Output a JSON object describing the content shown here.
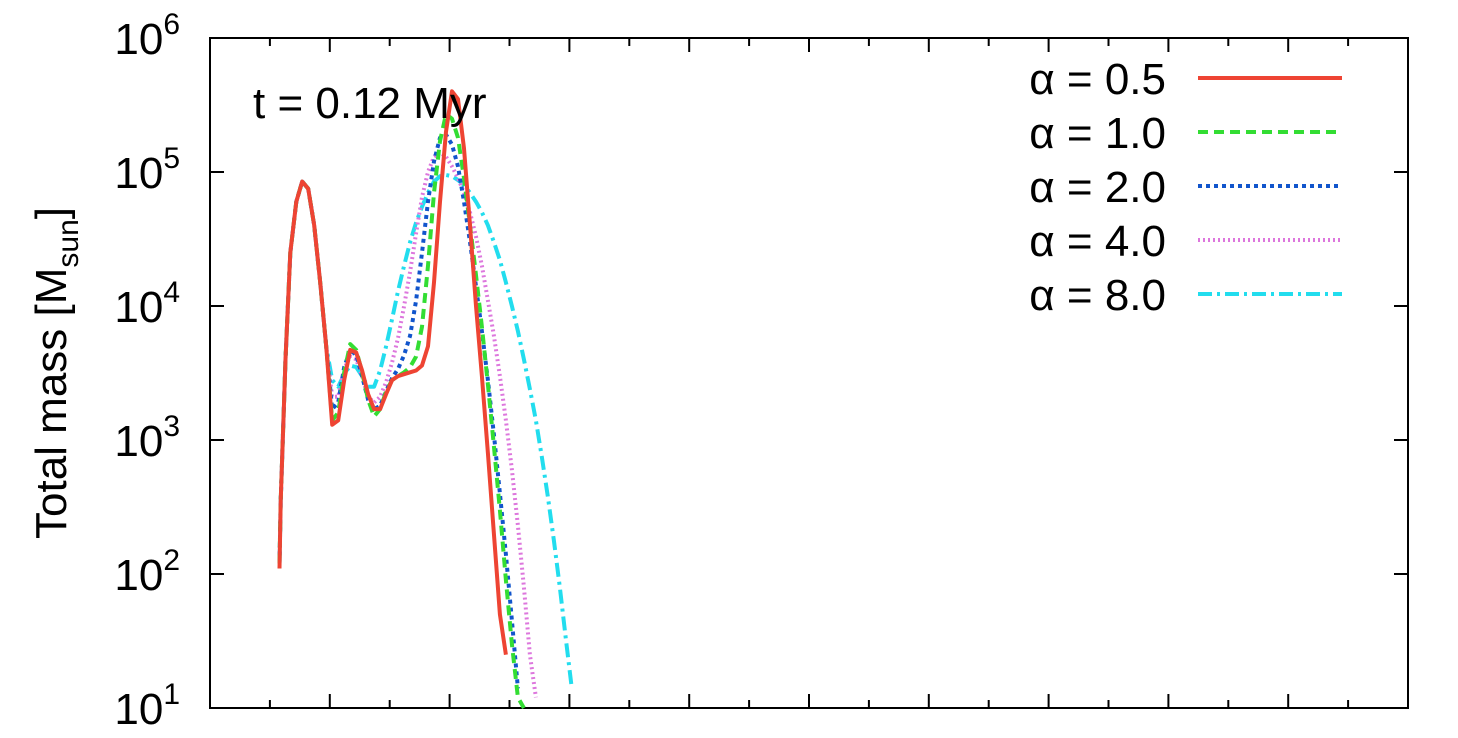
{
  "chart_data": {
    "type": "line",
    "title": "",
    "annotation": "t = 0.12 Myr",
    "ylabel": {
      "main": "Total mass [M",
      "sub": "sun",
      "close": "]"
    },
    "xlabel": "",
    "yscale": "log",
    "ylim": [
      10,
      1000000
    ],
    "y_ticks": [
      {
        "base": "10",
        "exp": "1",
        "value": 10
      },
      {
        "base": "10",
        "exp": "2",
        "value": 100
      },
      {
        "base": "10",
        "exp": "3",
        "value": 1000
      },
      {
        "base": "10",
        "exp": "4",
        "value": 10000
      },
      {
        "base": "10",
        "exp": "5",
        "value": 100000
      },
      {
        "base": "10",
        "exp": "6",
        "value": 1000000
      }
    ],
    "x_tick_labels": "none",
    "legend_position": "top-right",
    "series": [
      {
        "name": "α = 0.5",
        "color": "#ee4433",
        "dash": "",
        "width": 4,
        "x": [
          0.58,
          0.59,
          0.63,
          0.67,
          0.72,
          0.77,
          0.82,
          0.87,
          0.92,
          0.97,
          1.02,
          1.07,
          1.12,
          1.17,
          1.22,
          1.27,
          1.32,
          1.37,
          1.42,
          1.47,
          1.52,
          1.57,
          1.62,
          1.67,
          1.72,
          1.77,
          1.82,
          1.87,
          1.92,
          1.97,
          2.02,
          2.07,
          2.12,
          2.17,
          2.22,
          2.27,
          2.32,
          2.37,
          2.42,
          2.47,
          2.52,
          2.57,
          2.62,
          2.67,
          2.72,
          2.77,
          2.82,
          2.87,
          2.92,
          2.97,
          3.0,
          3.05,
          3.1,
          3.15,
          3.2,
          3.25,
          3.3,
          3.35,
          3.38
        ],
        "y": [
          110,
          350,
          4000,
          25000,
          60000,
          85000,
          75000,
          40000,
          15000,
          5000,
          1300,
          1400,
          2800,
          4700,
          4500,
          3300,
          2200,
          1700,
          1700,
          2200,
          2800,
          3000,
          3100,
          3200,
          3300,
          3600,
          5000,
          15000,
          60000,
          200000,
          400000,
          350000,
          150000,
          40000,
          10000,
          3000,
          800,
          200,
          50,
          25,
          null,
          null,
          null,
          null,
          null,
          null,
          null,
          null,
          null,
          null,
          null,
          null,
          null,
          null,
          null,
          null,
          null,
          null,
          null
        ]
      },
      {
        "name": "α = 1.0",
        "color": "#33dd33",
        "dash": "10,6",
        "width": 4,
        "x": [
          0.58,
          0.59,
          0.63,
          0.67,
          0.72,
          0.77,
          0.82,
          0.87,
          0.92,
          0.97,
          1.02,
          1.07,
          1.12,
          1.17,
          1.22,
          1.27,
          1.32,
          1.37,
          1.42,
          1.47,
          1.52,
          1.57,
          1.62,
          1.67,
          1.72,
          1.77,
          1.82,
          1.87,
          1.92,
          1.97,
          2.02,
          2.07,
          2.12,
          2.17,
          2.22,
          2.27,
          2.32,
          2.37,
          2.42,
          2.47,
          2.52,
          2.57,
          2.62,
          2.67,
          2.72
        ],
        "y": [
          120,
          350,
          4000,
          25000,
          60000,
          85000,
          75000,
          40000,
          15000,
          5000,
          1400,
          1600,
          3200,
          5200,
          4700,
          3200,
          2000,
          1500,
          1700,
          2300,
          2800,
          3000,
          3200,
          3500,
          4200,
          7000,
          20000,
          70000,
          170000,
          270000,
          250000,
          180000,
          90000,
          40000,
          17000,
          7000,
          2600,
          900,
          300,
          90,
          30,
          12,
          8,
          null,
          null
        ]
      },
      {
        "name": "α = 2.0",
        "color": "#1155cc",
        "dash": "4,4",
        "width": 4,
        "x": [
          0.58,
          0.59,
          0.63,
          0.67,
          0.72,
          0.77,
          0.82,
          0.87,
          0.92,
          0.97,
          1.02,
          1.07,
          1.12,
          1.17,
          1.22,
          1.27,
          1.32,
          1.37,
          1.42,
          1.47,
          1.52,
          1.57,
          1.62,
          1.67,
          1.72,
          1.77,
          1.82,
          1.87,
          1.92,
          1.97,
          2.02,
          2.07,
          2.12,
          2.17,
          2.22,
          2.27,
          2.32,
          2.37,
          2.42,
          2.47,
          2.52,
          2.57,
          2.62,
          2.67,
          2.72,
          2.77,
          2.82,
          2.87,
          2.92,
          2.97,
          3.0,
          3.05,
          3.1,
          3.15
        ],
        "y": [
          120,
          350,
          4000,
          25000,
          60000,
          85000,
          75000,
          40000,
          15000,
          5000,
          1700,
          1900,
          3500,
          4700,
          4300,
          3000,
          2000,
          1700,
          1800,
          2300,
          2900,
          3400,
          4300,
          6000,
          11000,
          25000,
          60000,
          120000,
          180000,
          190000,
          160000,
          110000,
          60000,
          30000,
          14000,
          6500,
          2800,
          1100,
          400,
          140,
          45,
          14,
          null,
          null,
          null,
          null,
          null,
          null,
          null,
          null,
          null,
          null,
          null,
          null
        ]
      },
      {
        "name": "α = 4.0",
        "color": "#dd77dd",
        "dash": "2,3",
        "width": 4,
        "x": [
          0.58,
          0.59,
          0.63,
          0.67,
          0.72,
          0.77,
          0.82,
          0.87,
          0.92,
          0.97,
          1.02,
          1.07,
          1.12,
          1.17,
          1.22,
          1.27,
          1.32,
          1.37,
          1.42,
          1.47,
          1.52,
          1.57,
          1.62,
          1.67,
          1.72,
          1.77,
          1.82,
          1.87,
          1.92,
          1.97,
          2.02,
          2.07,
          2.12,
          2.17,
          2.22,
          2.27,
          2.32,
          2.37,
          2.42,
          2.47,
          2.52,
          2.57,
          2.62,
          2.67,
          2.72,
          2.77,
          2.82,
          2.87,
          2.92,
          2.97,
          3.0,
          3.05,
          3.1,
          3.15,
          3.2,
          3.25
        ],
        "y": [
          120,
          350,
          4000,
          25000,
          60000,
          85000,
          75000,
          40000,
          15000,
          5000,
          2100,
          2100,
          3400,
          4200,
          4000,
          3000,
          2100,
          1900,
          2100,
          2700,
          3800,
          5800,
          10000,
          18000,
          35000,
          65000,
          100000,
          130000,
          140000,
          130000,
          110000,
          90000,
          70000,
          50000,
          33000,
          20000,
          11000,
          6000,
          3000,
          1400,
          600,
          230,
          80,
          25,
          12,
          null,
          null,
          null,
          null,
          null,
          null,
          null,
          null,
          null,
          null,
          null
        ]
      },
      {
        "name": "α = 8.0",
        "color": "#22ddee",
        "dash": "14,5,3,5",
        "width": 4,
        "x": [
          0.58,
          0.59,
          0.63,
          0.67,
          0.72,
          0.77,
          0.82,
          0.87,
          0.92,
          0.97,
          1.02,
          1.07,
          1.12,
          1.17,
          1.22,
          1.27,
          1.32,
          1.37,
          1.42,
          1.47,
          1.52,
          1.57,
          1.62,
          1.67,
          1.72,
          1.77,
          1.82,
          1.87,
          1.92,
          1.97,
          2.02,
          2.07,
          2.12,
          2.17,
          2.22,
          2.27,
          2.32,
          2.37,
          2.42,
          2.47,
          2.52,
          2.57,
          2.62,
          2.67,
          2.72,
          2.77,
          2.82,
          2.87,
          2.92,
          2.97,
          3.02,
          3.07,
          3.12,
          3.17,
          3.22,
          3.27,
          3.32,
          3.37
        ],
        "y": [
          120,
          350,
          4000,
          25000,
          60000,
          85000,
          75000,
          40000,
          15000,
          5000,
          2800,
          2500,
          3100,
          3600,
          3500,
          3000,
          2500,
          2500,
          3300,
          5000,
          8000,
          13000,
          20000,
          30000,
          42000,
          55000,
          70000,
          85000,
          93000,
          95000,
          93000,
          87000,
          80000,
          70000,
          60000,
          50000,
          40000,
          30000,
          22000,
          15000,
          10000,
          6500,
          4000,
          2400,
          1400,
          750,
          380,
          180,
          80,
          33,
          14,
          null,
          null,
          null,
          null,
          null,
          null,
          null
        ]
      }
    ]
  }
}
